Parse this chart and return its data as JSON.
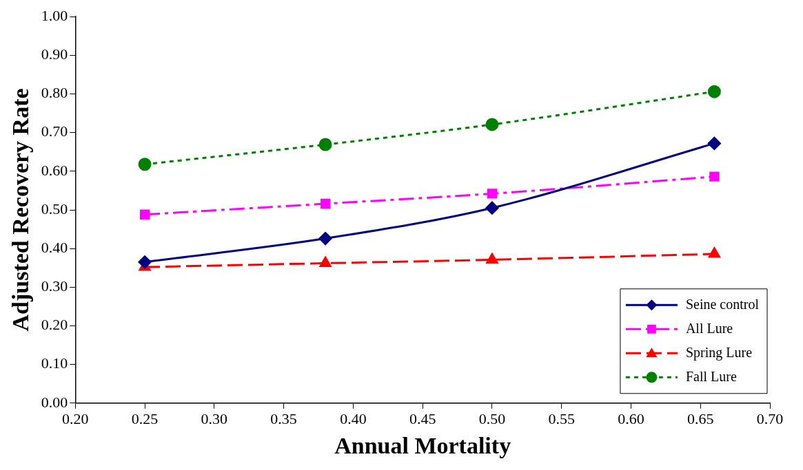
{
  "chart_data": {
    "type": "line",
    "xlabel": "Annual Mortality",
    "ylabel": "Adjusted Recovery Rate",
    "xlim": [
      0.2,
      0.7
    ],
    "xticks": [
      {
        "value": 0.2,
        "label": "0.20"
      },
      {
        "value": 0.25,
        "label": "0.25"
      },
      {
        "value": 0.3,
        "label": "0.30"
      },
      {
        "value": 0.35,
        "label": "0.35"
      },
      {
        "value": 0.4,
        "label": "0.40"
      },
      {
        "value": 0.45,
        "label": "0.45"
      },
      {
        "value": 0.5,
        "label": "0.50"
      },
      {
        "value": 0.55,
        "label": "0.55"
      },
      {
        "value": 0.6,
        "label": "0.60"
      },
      {
        "value": 0.65,
        "label": "0.65"
      },
      {
        "value": 0.7,
        "label": "0.70"
      }
    ],
    "ylim": [
      0,
      1
    ],
    "yticks": [
      {
        "value": 0,
        "label": "0.00"
      },
      {
        "value": 0.1,
        "label": "0.10"
      },
      {
        "value": 0.2,
        "label": "0.20"
      },
      {
        "value": 0.3,
        "label": "0.30"
      },
      {
        "value": 0.4,
        "label": "0.40"
      },
      {
        "value": 0.5,
        "label": "0.50"
      },
      {
        "value": 0.6,
        "label": "0.60"
      },
      {
        "value": 0.7,
        "label": "0.70"
      },
      {
        "value": 0.8,
        "label": "0.80"
      },
      {
        "value": 0.9,
        "label": "0.90"
      },
      {
        "value": 1,
        "label": "1.00"
      }
    ],
    "x": [
      0.25,
      0.38,
      0.5,
      0.66
    ],
    "legend": "bottom right",
    "series": [
      {
        "name": "Seine control",
        "color": "#000080",
        "marker": "diamond",
        "line_style": "solid",
        "values": [
          0.365,
          0.426,
          0.505,
          0.672
        ]
      },
      {
        "name": "All Lure",
        "color": "#ff00ff",
        "marker": "square",
        "line_style": "dashdot",
        "values": [
          0.488,
          0.516,
          0.542,
          0.586
        ]
      },
      {
        "name": "Spring Lure",
        "color": "#ff0000",
        "marker": "triangle",
        "line_style": "dashed",
        "values": [
          0.352,
          0.362,
          0.371,
          0.386
        ]
      },
      {
        "name": "Fall Lure",
        "color": "#008000",
        "marker": "circle",
        "line_style": "dotted",
        "values": [
          0.618,
          0.669,
          0.721,
          0.806
        ]
      }
    ]
  }
}
